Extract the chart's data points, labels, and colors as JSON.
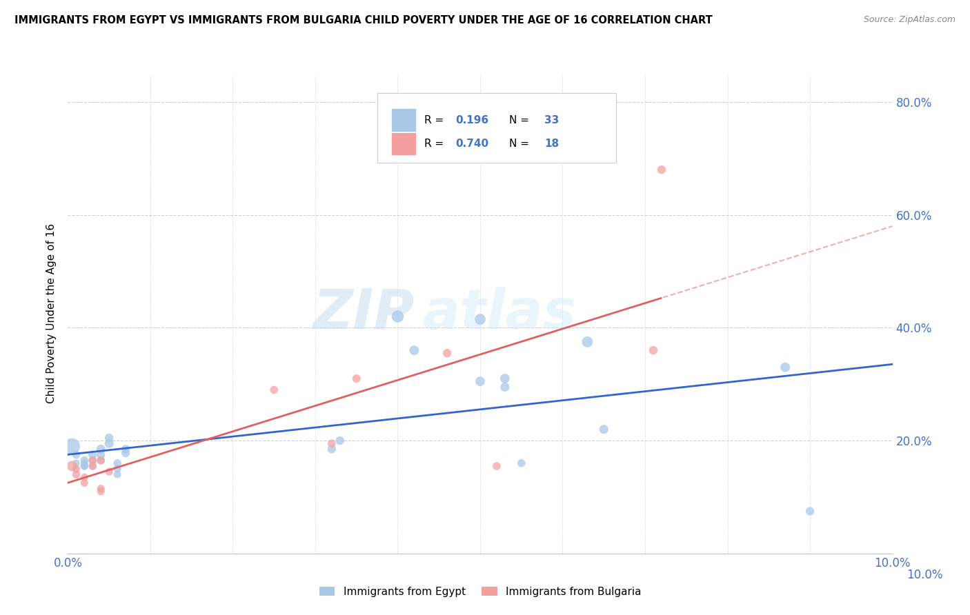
{
  "title": "IMMIGRANTS FROM EGYPT VS IMMIGRANTS FROM BULGARIA CHILD POVERTY UNDER THE AGE OF 16 CORRELATION CHART",
  "source": "Source: ZipAtlas.com",
  "ylabel": "Child Poverty Under the Age of 16",
  "legend_labels": [
    "Immigrants from Egypt",
    "Immigrants from Bulgaria"
  ],
  "r_egypt": 0.196,
  "n_egypt": 33,
  "r_bulgaria": 0.74,
  "n_bulgaria": 18,
  "egypt_color": "#a8c8e8",
  "bulgaria_color": "#f4a0a0",
  "egypt_line_color": "#3366cc",
  "bulgaria_line_color": "#e06060",
  "xlim": [
    0,
    0.1
  ],
  "ylim": [
    0,
    0.85
  ],
  "egypt_x": [
    0.0005,
    0.001,
    0.001,
    0.002,
    0.002,
    0.002,
    0.002,
    0.003,
    0.003,
    0.003,
    0.004,
    0.004,
    0.004,
    0.005,
    0.005,
    0.006,
    0.006,
    0.006,
    0.007,
    0.007,
    0.032,
    0.033,
    0.04,
    0.042,
    0.05,
    0.05,
    0.053,
    0.053,
    0.055,
    0.063,
    0.065,
    0.087,
    0.09
  ],
  "egypt_y": [
    0.19,
    0.16,
    0.175,
    0.155,
    0.155,
    0.16,
    0.165,
    0.175,
    0.155,
    0.165,
    0.165,
    0.175,
    0.185,
    0.195,
    0.205,
    0.14,
    0.15,
    0.16,
    0.178,
    0.185,
    0.185,
    0.2,
    0.42,
    0.36,
    0.415,
    0.305,
    0.295,
    0.31,
    0.16,
    0.375,
    0.22,
    0.33,
    0.075
  ],
  "egypt_sizes": [
    280,
    60,
    70,
    60,
    70,
    60,
    70,
    80,
    60,
    70,
    70,
    80,
    90,
    90,
    80,
    60,
    65,
    70,
    80,
    80,
    80,
    80,
    160,
    100,
    130,
    100,
    90,
    100,
    70,
    130,
    90,
    100,
    80
  ],
  "bulgaria_x": [
    0.0005,
    0.001,
    0.001,
    0.002,
    0.002,
    0.003,
    0.003,
    0.004,
    0.004,
    0.004,
    0.005,
    0.025,
    0.032,
    0.035,
    0.046,
    0.052,
    0.071,
    0.072
  ],
  "bulgaria_y": [
    0.155,
    0.15,
    0.14,
    0.125,
    0.135,
    0.165,
    0.155,
    0.165,
    0.115,
    0.11,
    0.145,
    0.29,
    0.195,
    0.31,
    0.355,
    0.155,
    0.36,
    0.68
  ],
  "bulgaria_sizes": [
    120,
    70,
    70,
    65,
    65,
    70,
    70,
    70,
    65,
    65,
    65,
    70,
    70,
    75,
    80,
    70,
    80,
    80
  ],
  "watermark_zip": "ZIP",
  "watermark_atlas": "atlas",
  "xtick_labels": [
    "0.0%",
    "",
    "",
    "",
    "",
    "",
    "",
    "",
    "",
    "",
    "10.0%"
  ],
  "yticks": [
    0.0,
    0.2,
    0.4,
    0.6,
    0.8
  ],
  "ytick_labels_right": [
    "",
    "20.0%",
    "40.0%",
    "60.0%",
    "80.0%"
  ],
  "ytick_label_bottom_right": "10.0%",
  "grid_color": "#d0d0d0",
  "background_color": "#ffffff"
}
